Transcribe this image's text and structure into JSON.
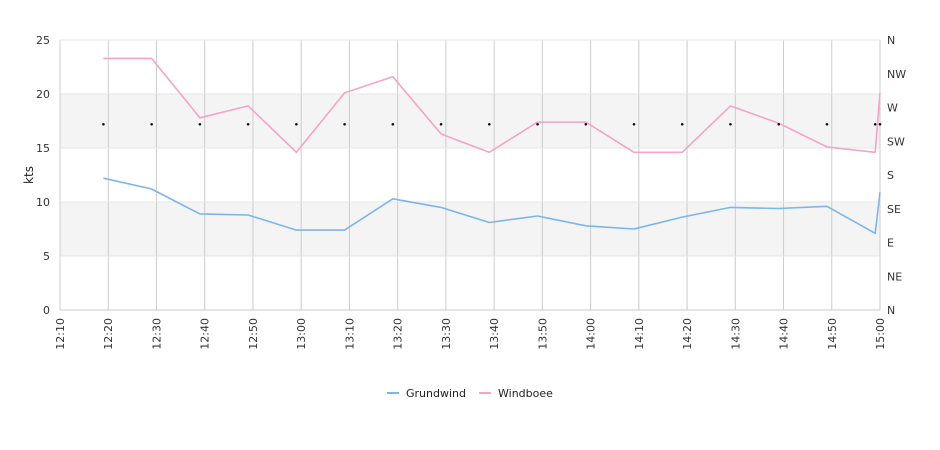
{
  "chart_data": {
    "type": "line",
    "ylabel": "kts",
    "ylim": [
      0,
      25
    ],
    "y_ticks": [
      "0",
      "5",
      "10",
      "15",
      "20",
      "25"
    ],
    "x_ticks": [
      "12:10",
      "12:20",
      "12:30",
      "12:40",
      "12:50",
      "13:00",
      "13:10",
      "13:20",
      "13:30",
      "13:40",
      "13:50",
      "14:00",
      "14:10",
      "14:20",
      "14:30",
      "14:40",
      "14:50",
      "15:00"
    ],
    "right_axis_labels": [
      "N",
      "NE",
      "E",
      "SE",
      "S",
      "SW",
      "W",
      "NW",
      "N"
    ],
    "x": [
      "12:19",
      "12:29",
      "12:39",
      "12:49",
      "12:59",
      "13:09",
      "13:19",
      "13:29",
      "13:39",
      "13:49",
      "13:59",
      "14:09",
      "14:19",
      "14:29",
      "14:39",
      "14:49",
      "14:59",
      "15:00"
    ],
    "series": [
      {
        "name": "Grundwind",
        "color": "#7cb5ec",
        "values": [
          12.2,
          11.2,
          8.9,
          8.8,
          7.4,
          7.4,
          10.3,
          9.5,
          8.1,
          8.7,
          7.8,
          7.5,
          8.6,
          9.5,
          9.4,
          9.6,
          7.1,
          10.9
        ]
      },
      {
        "name": "Windboee",
        "color": "#f7a3c8",
        "values": [
          23.3,
          23.3,
          17.8,
          18.9,
          14.6,
          20.1,
          21.6,
          16.3,
          14.6,
          17.4,
          17.4,
          14.6,
          14.6,
          18.9,
          17.3,
          15.1,
          14.6,
          20.1
        ]
      }
    ],
    "direction_markers": {
      "value": 17.2,
      "x": [
        "12:19",
        "12:29",
        "12:39",
        "12:49",
        "12:59",
        "13:09",
        "13:19",
        "13:29",
        "13:39",
        "13:49",
        "13:59",
        "14:09",
        "14:19",
        "14:29",
        "14:39",
        "14:49",
        "14:59",
        "15:00"
      ]
    },
    "grid": true,
    "legend_position": "bottom-center",
    "band_color": "#f4f4f4"
  }
}
